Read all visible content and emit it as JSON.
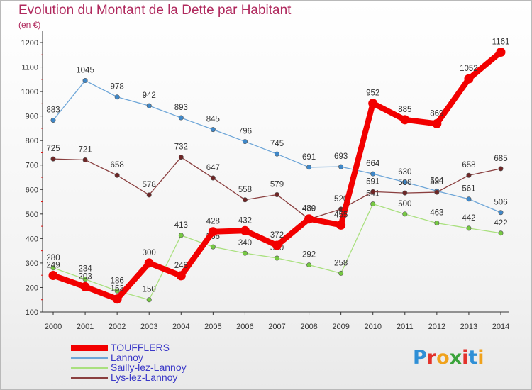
{
  "title": "Evolution du Montant de la Dette par Habitant",
  "subtitle": "(en €)",
  "logo": {
    "text": "Proxiti",
    "colors": [
      "#2f8fd6",
      "#e3322b",
      "#f0a21c",
      "#3aa33a",
      "#e3322b",
      "#2f8fd6",
      "#f0a21c"
    ]
  },
  "chart_data": {
    "type": "line",
    "title": "Evolution du Montant de la Dette par Habitant",
    "ylabel": "(en €)",
    "xlabel": "",
    "x": [
      "2000",
      "2001",
      "2002",
      "2003",
      "2004",
      "2005",
      "2006",
      "2007",
      "2008",
      "2009",
      "2010",
      "2011",
      "2012",
      "2013",
      "2014"
    ],
    "yticks": [
      100,
      200,
      300,
      400,
      500,
      600,
      700,
      800,
      900,
      1000,
      1100,
      1200
    ],
    "ylim": [
      100,
      1200
    ],
    "grid": false,
    "legend_position": "bottom-left",
    "series": [
      {
        "name": "Lannoy",
        "color": "#6ea6d8",
        "marker": "#3f88c9",
        "values": [
          883,
          1045,
          978,
          942,
          893,
          845,
          796,
          745,
          691,
          693,
          664,
          630,
          594,
          561,
          506
        ]
      },
      {
        "name": "Sailly-lez-Lannoy",
        "color": "#a9e07e",
        "marker": "#76c943",
        "values": [
          280,
          234,
          186,
          150,
          413,
          366,
          340,
          320,
          292,
          258,
          541,
          500,
          463,
          442,
          422
        ]
      },
      {
        "name": "Lys-lez-Lannoy",
        "color": "#8a3f3f",
        "marker": "#6e2626",
        "values": [
          725,
          721,
          658,
          578,
          732,
          647,
          558,
          579,
          479,
          520,
          591,
          586,
          589,
          658,
          685
        ]
      },
      {
        "name": "TOUFFLERS",
        "color": "#f20000",
        "marker": "#f20000",
        "values": [
          249,
          203,
          153,
          300,
          248,
          428,
          432,
          372,
          480,
          455,
          952,
          885,
          869,
          1052,
          1161
        ]
      }
    ]
  }
}
